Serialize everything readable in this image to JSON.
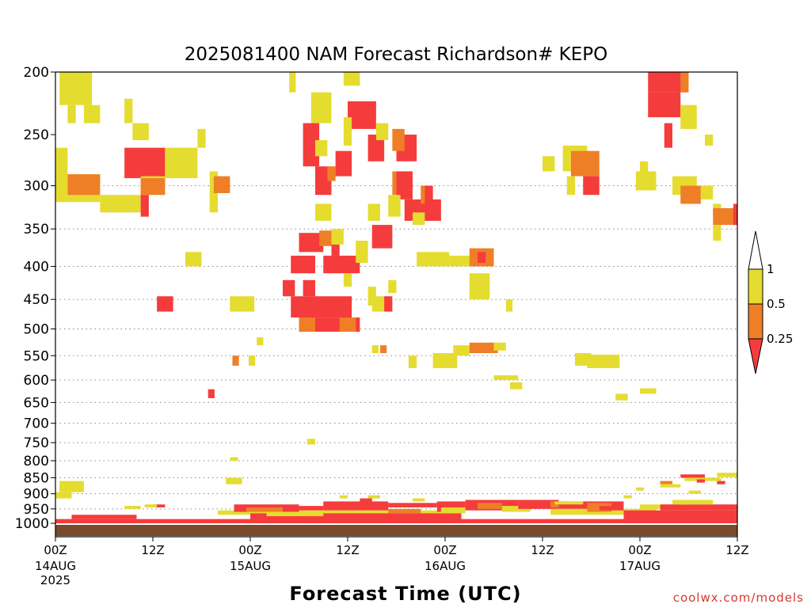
{
  "title": "2025081400 NAM Forecast Richardson# KEPO",
  "credit": "coolwx.com/models",
  "colors": {
    "ri_lt_0_25": "#f53c3c",
    "ri_0_25_0_5": "#ee7f27",
    "ri_0_5_1": "#e5dc30",
    "ground": "#7a4a2a",
    "grid": "#888888"
  },
  "chart_data": {
    "type": "heatmap",
    "title": "2025081400 NAM Forecast Richardson# KEPO",
    "xlabel": "Forecast Time (UTC)",
    "ylabel": "",
    "x_unit": "forecast hour",
    "xlim": [
      0,
      84
    ],
    "y_axis": "pressure (hPa), inverted, log scale",
    "ylim": [
      1025,
      200
    ],
    "grid": "dotted horizontal lines at pressure levels",
    "y_ticks": [
      {
        "label": "200",
        "p": 200,
        "grid": false
      },
      {
        "label": "250",
        "p": 250,
        "grid": false
      },
      {
        "label": "300",
        "p": 300,
        "grid": true
      },
      {
        "label": "350",
        "p": 350,
        "grid": true
      },
      {
        "label": "400",
        "p": 400,
        "grid": true
      },
      {
        "label": "450",
        "p": 450,
        "grid": true
      },
      {
        "label": "500",
        "p": 500,
        "grid": true
      },
      {
        "label": "550",
        "p": 550,
        "grid": true
      },
      {
        "label": "600",
        "p": 600,
        "grid": true
      },
      {
        "label": "650",
        "p": 650,
        "grid": true
      },
      {
        "label": "700",
        "p": 700,
        "grid": true
      },
      {
        "label": "750",
        "p": 750,
        "grid": true
      },
      {
        "label": "800",
        "p": 800,
        "grid": true
      },
      {
        "label": "850",
        "p": 850,
        "grid": true
      },
      {
        "label": "900",
        "p": 900,
        "grid": true
      },
      {
        "label": "950",
        "p": 950,
        "grid": true
      },
      {
        "label": "1000",
        "p": 1000,
        "grid": false
      }
    ],
    "x_ticks": [
      {
        "hour": 0,
        "label": "00Z",
        "sub": [
          "14AUG",
          "2025"
        ]
      },
      {
        "hour": 12,
        "label": "12Z",
        "sub": []
      },
      {
        "hour": 24,
        "label": "00Z",
        "sub": [
          "15AUG"
        ]
      },
      {
        "hour": 36,
        "label": "12Z",
        "sub": []
      },
      {
        "hour": 48,
        "label": "00Z",
        "sub": [
          "16AUG"
        ]
      },
      {
        "hour": 60,
        "label": "12Z",
        "sub": []
      },
      {
        "hour": 72,
        "label": "00Z",
        "sub": [
          "17AUG"
        ]
      },
      {
        "hour": 84,
        "label": "12Z",
        "sub": []
      }
    ],
    "legend": {
      "placement": "right",
      "labels": [
        {
          "text": "1",
          "value": 1
        },
        {
          "text": "0.5",
          "value": 0.5
        },
        {
          "text": "0.25",
          "value": 0.25
        }
      ]
    },
    "categories": [
      {
        "code": "r",
        "range": "< 0.25"
      },
      {
        "code": "o",
        "range": "0.25 - 0.5"
      },
      {
        "code": "y",
        "range": "0.5 - 1"
      }
    ],
    "cells": [
      [
        "y",
        0.5,
        4.5,
        200,
        225
      ],
      [
        "y",
        1.5,
        2.5,
        225,
        240
      ],
      [
        "y",
        3.5,
        5.5,
        225,
        240
      ],
      [
        "y",
        8.5,
        9.5,
        220,
        240
      ],
      [
        "y",
        9.5,
        11.5,
        240,
        255
      ],
      [
        "y",
        17.5,
        18.5,
        245,
        262
      ],
      [
        "y",
        0,
        1.5,
        262,
        292
      ],
      [
        "y",
        0,
        5.5,
        288,
        318
      ],
      [
        "o",
        1.5,
        5.5,
        288,
        310
      ],
      [
        "y",
        5.5,
        10.5,
        310,
        330
      ],
      [
        "r",
        8.5,
        13.5,
        262,
        292
      ],
      [
        "y",
        10.5,
        13.5,
        290,
        310
      ],
      [
        "o",
        10.5,
        13.5,
        292,
        310
      ],
      [
        "r",
        10.5,
        11.5,
        310,
        335
      ],
      [
        "y",
        13.5,
        17.5,
        262,
        292
      ],
      [
        "y",
        19,
        20,
        285,
        330
      ],
      [
        "o",
        19.5,
        21.5,
        290,
        308
      ],
      [
        "y",
        16,
        18,
        380,
        400
      ],
      [
        "r",
        12.5,
        14.5,
        445,
        470
      ],
      [
        "y",
        21.5,
        24.5,
        445,
        470
      ],
      [
        "y",
        24.8,
        25.6,
        515,
        530
      ],
      [
        "o",
        21.8,
        22.6,
        550,
        570
      ],
      [
        "y",
        23.8,
        24.6,
        550,
        570
      ],
      [
        "r",
        18.8,
        19.6,
        620,
        640
      ],
      [
        "y",
        28.8,
        29.6,
        195,
        215
      ],
      [
        "y",
        31.5,
        34,
        215,
        240
      ],
      [
        "r",
        30.5,
        32.5,
        240,
        280
      ],
      [
        "y",
        32,
        33.5,
        255,
        270
      ],
      [
        "r",
        32,
        34,
        280,
        310
      ],
      [
        "y",
        32,
        34,
        320,
        340
      ],
      [
        "o",
        33.5,
        34.5,
        280,
        295
      ],
      [
        "r",
        34.5,
        36.5,
        265,
        290
      ],
      [
        "y",
        35.5,
        37.5,
        200,
        210
      ],
      [
        "r",
        36,
        39.5,
        222,
        245
      ],
      [
        "y",
        35.5,
        36.5,
        235,
        260
      ],
      [
        "r",
        30,
        33,
        355,
        380
      ],
      [
        "o",
        32.5,
        34,
        352,
        372
      ],
      [
        "y",
        34,
        35.5,
        350,
        370
      ],
      [
        "r",
        34,
        35,
        370,
        385
      ],
      [
        "r",
        29,
        32,
        385,
        410
      ],
      [
        "r",
        33,
        37.5,
        385,
        410
      ],
      [
        "y",
        35.5,
        36.5,
        410,
        430
      ],
      [
        "r",
        28,
        29.5,
        420,
        445
      ],
      [
        "r",
        30.5,
        32,
        420,
        445
      ],
      [
        "r",
        29,
        36.5,
        445,
        480
      ],
      [
        "r",
        30,
        37.5,
        480,
        505
      ],
      [
        "o",
        30,
        32,
        480,
        505
      ],
      [
        "o",
        35,
        37,
        480,
        505
      ],
      [
        "y",
        38.5,
        40,
        320,
        340
      ],
      [
        "r",
        39,
        41.5,
        345,
        375
      ],
      [
        "y",
        37,
        38.5,
        365,
        395
      ],
      [
        "y",
        38.5,
        39.5,
        430,
        460
      ],
      [
        "y",
        39,
        41,
        445,
        470
      ],
      [
        "r",
        40.5,
        41.5,
        445,
        470
      ],
      [
        "y",
        41,
        42,
        420,
        440
      ],
      [
        "o",
        40,
        40.8,
        530,
        545
      ],
      [
        "y",
        39,
        39.8,
        530,
        545
      ],
      [
        "r",
        38.5,
        40.5,
        250,
        275
      ],
      [
        "y",
        39.5,
        41,
        240,
        255
      ],
      [
        "r",
        42,
        44.5,
        250,
        275
      ],
      [
        "o",
        41.5,
        43,
        245,
        265
      ],
      [
        "o",
        41.5,
        44,
        285,
        310
      ],
      [
        "r",
        42,
        44,
        285,
        315
      ],
      [
        "r",
        43,
        47.5,
        315,
        340
      ],
      [
        "y",
        41,
        42.5,
        310,
        335
      ],
      [
        "y",
        44,
        45.5,
        330,
        345
      ],
      [
        "o",
        45,
        46,
        300,
        320
      ],
      [
        "r",
        45.5,
        46.5,
        300,
        320
      ],
      [
        "y",
        44.5,
        46,
        380,
        400
      ],
      [
        "y",
        46,
        48.5,
        380,
        400
      ],
      [
        "y",
        48.5,
        51,
        385,
        400
      ],
      [
        "o",
        51,
        54,
        375,
        400
      ],
      [
        "r",
        52,
        53,
        380,
        395
      ],
      [
        "y",
        51,
        53.5,
        410,
        450
      ],
      [
        "y",
        55.5,
        56.3,
        450,
        470
      ],
      [
        "y",
        43.5,
        44.5,
        550,
        575
      ],
      [
        "y",
        46.5,
        49.5,
        545,
        575
      ],
      [
        "y",
        49,
        51,
        530,
        550
      ],
      [
        "o",
        51,
        54.5,
        525,
        545
      ],
      [
        "y",
        54,
        55.5,
        525,
        540
      ],
      [
        "y",
        60,
        61.5,
        270,
        285
      ],
      [
        "y",
        62.5,
        65.5,
        260,
        285
      ],
      [
        "o",
        63.5,
        67,
        265,
        290
      ],
      [
        "r",
        65,
        67,
        290,
        310
      ],
      [
        "y",
        63,
        64,
        290,
        310
      ],
      [
        "y",
        65.5,
        69.5,
        548,
        575
      ],
      [
        "y",
        64,
        66,
        545,
        570
      ],
      [
        "y",
        72,
        73,
        275,
        290
      ],
      [
        "y",
        71.5,
        74,
        285,
        305
      ],
      [
        "r",
        73,
        78,
        200,
        215
      ],
      [
        "o",
        77,
        78,
        200,
        215
      ],
      [
        "r",
        73,
        77,
        215,
        235
      ],
      [
        "y",
        77,
        79,
        225,
        245
      ],
      [
        "r",
        75,
        76,
        240,
        262
      ],
      [
        "y",
        80,
        81,
        250,
        260
      ],
      [
        "y",
        76,
        79,
        290,
        310
      ],
      [
        "o",
        77,
        79.5,
        300,
        320
      ],
      [
        "y",
        79.5,
        81,
        300,
        315
      ],
      [
        "y",
        81,
        82,
        320,
        335
      ],
      [
        "o",
        81,
        84,
        325,
        345
      ],
      [
        "r",
        83.5,
        84,
        320,
        345
      ],
      [
        "y",
        81,
        82,
        345,
        365
      ],
      [
        "y",
        54,
        57,
        590,
        600
      ],
      [
        "y",
        56,
        57.5,
        605,
        620
      ],
      [
        "y",
        69,
        70.5,
        630,
        645
      ],
      [
        "y",
        72,
        74,
        618,
        630
      ],
      [
        "r",
        0,
        84,
        985,
        1000
      ],
      [
        "r",
        2,
        10,
        970,
        985
      ],
      [
        "r",
        12,
        13.5,
        935,
        945
      ],
      [
        "y",
        11,
        12.5,
        935,
        945
      ],
      [
        "y",
        8.5,
        10.5,
        940,
        950
      ],
      [
        "y",
        0,
        2,
        895,
        915
      ],
      [
        "y",
        0.5,
        3.5,
        860,
        895
      ],
      [
        "y",
        21,
        23,
        850,
        870
      ],
      [
        "y",
        21.5,
        22.5,
        790,
        800
      ],
      [
        "y",
        31,
        32,
        740,
        755
      ],
      [
        "y",
        20,
        50,
        955,
        970
      ],
      [
        "r",
        24,
        50,
        965,
        990
      ],
      [
        "r",
        22,
        30,
        935,
        960
      ],
      [
        "o",
        23.5,
        28,
        945,
        960
      ],
      [
        "r",
        29,
        33,
        940,
        955
      ],
      [
        "y",
        26,
        33,
        960,
        975
      ],
      [
        "r",
        33,
        41,
        925,
        955
      ],
      [
        "r",
        41,
        47,
        930,
        945
      ],
      [
        "o",
        41,
        45,
        950,
        965
      ],
      [
        "r",
        47,
        50.5,
        925,
        960
      ],
      [
        "y",
        47.5,
        50.5,
        945,
        965
      ],
      [
        "r",
        50.5,
        57,
        920,
        955
      ],
      [
        "o",
        52,
        55,
        930,
        950
      ],
      [
        "y",
        55,
        58.5,
        940,
        960
      ],
      [
        "r",
        57,
        62,
        920,
        950
      ],
      [
        "o",
        61,
        63,
        925,
        945
      ],
      [
        "r",
        62,
        70,
        925,
        950
      ],
      [
        "y",
        61,
        70,
        950,
        970
      ],
      [
        "o",
        65.5,
        68.5,
        930,
        960
      ],
      [
        "r",
        67,
        70,
        940,
        955
      ],
      [
        "y",
        70,
        74,
        950,
        970
      ],
      [
        "r",
        70,
        84,
        955,
        990
      ],
      [
        "y",
        72,
        77,
        935,
        950
      ],
      [
        "r",
        74.5,
        84,
        935,
        955
      ],
      [
        "y",
        77,
        81,
        920,
        935
      ],
      [
        "o",
        74.5,
        76,
        860,
        870
      ],
      [
        "y",
        74.5,
        77,
        870,
        880
      ],
      [
        "r",
        77,
        80,
        840,
        850
      ],
      [
        "y",
        77.5,
        82,
        850,
        860
      ],
      [
        "r",
        79,
        80,
        855,
        865
      ],
      [
        "y",
        78,
        79.5,
        890,
        900
      ],
      [
        "y",
        81.5,
        84,
        835,
        848
      ],
      [
        "r",
        81.5,
        82.5,
        860,
        870
      ],
      [
        "y",
        71.5,
        72.5,
        880,
        890
      ],
      [
        "y",
        70,
        71,
        905,
        915
      ],
      [
        "y",
        76,
        78,
        920,
        935
      ],
      [
        "y",
        61.5,
        65,
        925,
        935
      ],
      [
        "y",
        35,
        36,
        905,
        915
      ],
      [
        "y",
        38.5,
        40,
        905,
        915
      ],
      [
        "r",
        37.5,
        39,
        915,
        930
      ],
      [
        "y",
        44,
        45.5,
        915,
        925
      ]
    ]
  }
}
